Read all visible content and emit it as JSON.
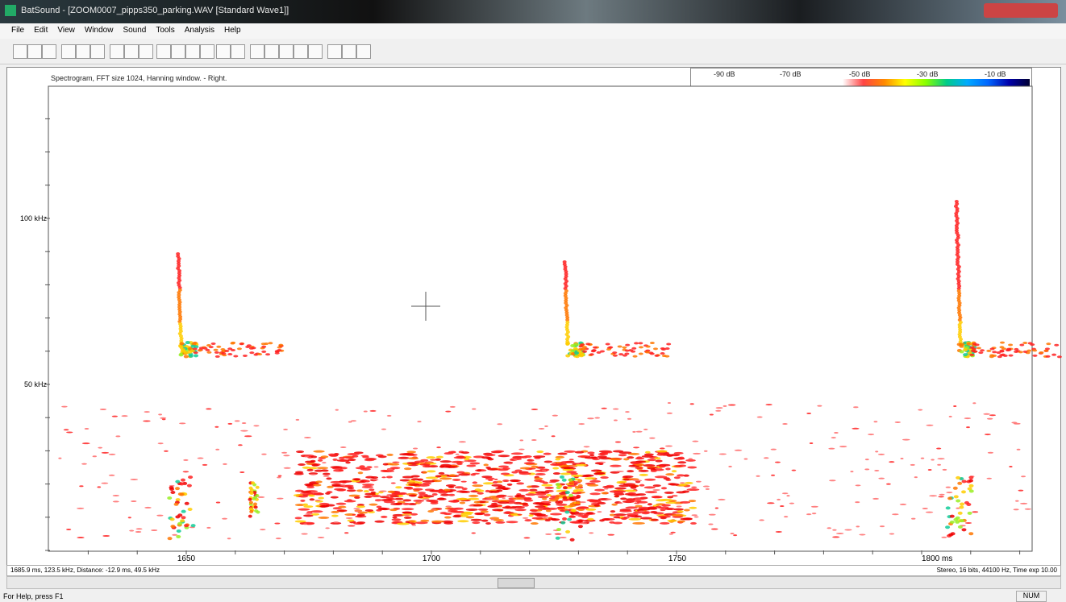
{
  "window": {
    "title": "BatSound - [ZOOM0007_pipps350_parking.WAV [Standard Wave1]]"
  },
  "menu": [
    "File",
    "Edit",
    "View",
    "Window",
    "Sound",
    "Tools",
    "Analysis",
    "Help"
  ],
  "spectrogram": {
    "header": "Spectrogram, FFT size 1024, Hanning window. - Right.",
    "scale_labels": [
      "-90 dB",
      "-70 dB",
      "-50 dB",
      "-30 dB",
      "-10 dB"
    ],
    "y_labels": [
      "100 kHz",
      "50 kHz"
    ],
    "x_labels": [
      "1650",
      "1700",
      "1750",
      "1800 ms"
    ]
  },
  "status": {
    "cursor": "1685.9 ms, 123.5 kHz, Distance: -12.9 ms, 49.5 kHz",
    "format": "Stereo, 16 bits, 44100 Hz, Time exp 10.00",
    "help": "For Help, press F1",
    "num": "NUM"
  }
}
